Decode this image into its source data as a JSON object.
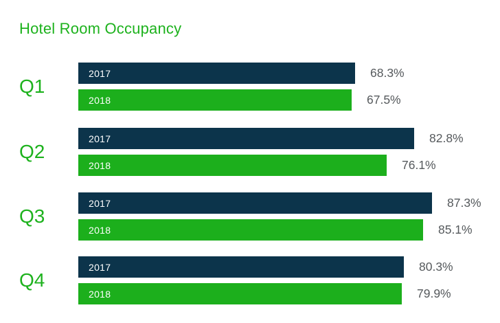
{
  "title": "Hotel Room Occupancy",
  "colors": {
    "title_green": "#1DB21D",
    "category_green": "#1DB21D",
    "bar_2017_navy": "#0C344B",
    "bar_2018_green": "#1CAF1C",
    "bar_label_white": "#FFFFFF",
    "value_text_gray": "#55595C",
    "background": "#FFFFFF"
  },
  "chart_data": {
    "type": "bar",
    "orientation": "horizontal",
    "title": "Hotel Room Occupancy",
    "categories": [
      "Q1",
      "Q2",
      "Q3",
      "Q4"
    ],
    "series": [
      {
        "name": "2017",
        "color": "#0C344B",
        "values": [
          68.3,
          82.8,
          87.3,
          80.3
        ]
      },
      {
        "name": "2018",
        "color": "#1CAF1C",
        "values": [
          67.5,
          76.1,
          85.1,
          79.9
        ]
      }
    ],
    "value_suffix": "%",
    "value_labels_shown": true,
    "xlim": [
      0,
      100
    ],
    "grid": false,
    "axis_ticks_shown": false,
    "legend": "in-bar year labels"
  }
}
